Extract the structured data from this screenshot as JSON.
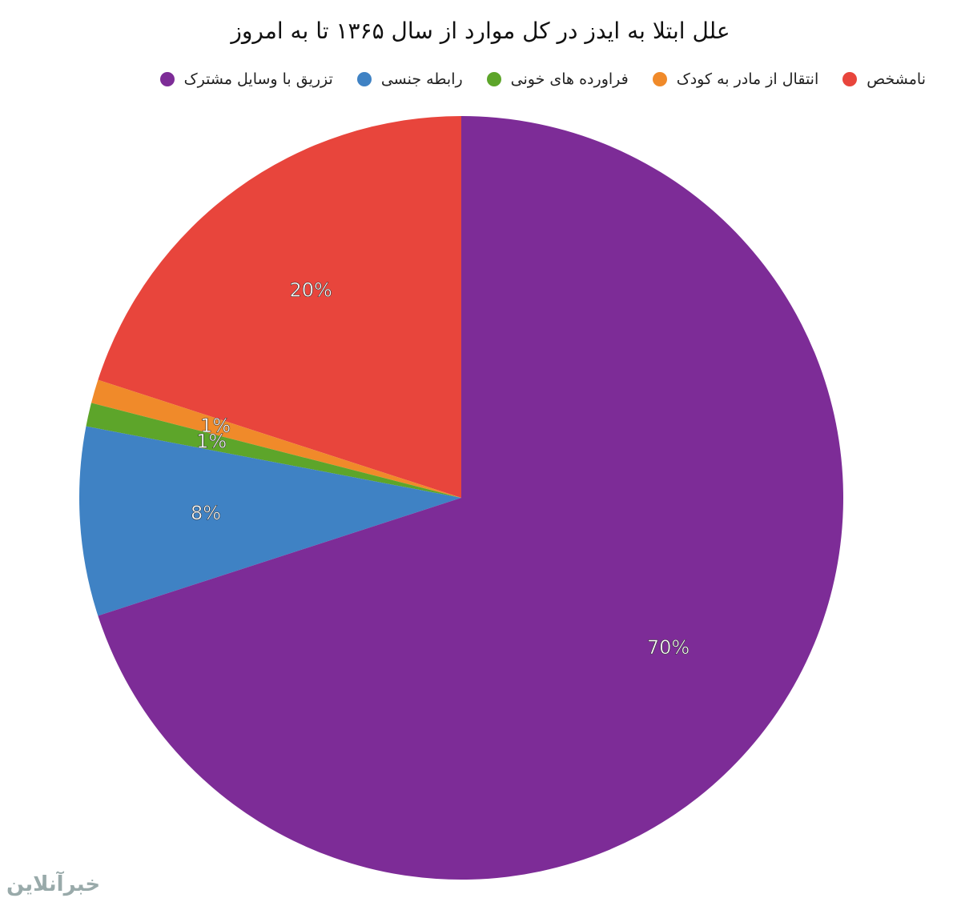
{
  "chart_data": {
    "type": "pie",
    "title": "علل ابتلا به ایدز در کل موارد از سال ۱۳۶۵ تا به امروز",
    "categories": [
      "نامشخص",
      "انتقال از مادر به کودک",
      "فراورده های خونی",
      "رابطه جنسی",
      "تزریق با وسایل مشترک"
    ],
    "values": [
      20,
      1,
      1,
      8,
      70
    ],
    "value_labels": [
      "20%",
      "1%",
      "1%",
      "8%",
      "70%"
    ],
    "colors": [
      "#e8453c",
      "#f08a2a",
      "#5da52a",
      "#3f82c4",
      "#7d2c97"
    ],
    "direction": "counterclockwise",
    "watermark": "خبرآنلاین"
  }
}
